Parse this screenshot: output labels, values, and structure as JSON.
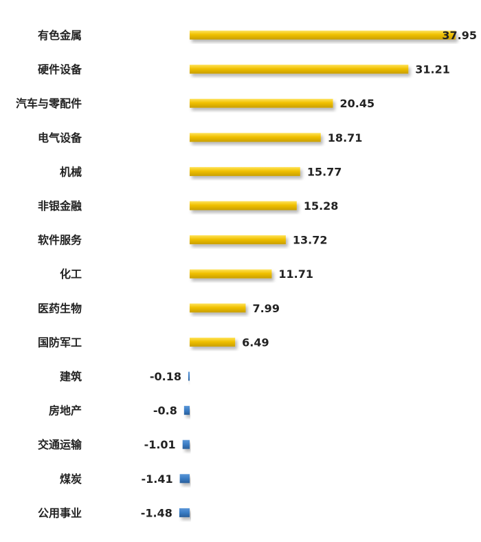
{
  "chart_data": {
    "type": "bar",
    "orientation": "horizontal",
    "categories": [
      "有色金属",
      "硬件设备",
      "汽车与零配件",
      "电气设备",
      "机械",
      "非银金融",
      "软件服务",
      "化工",
      "医药生物",
      "国防军工",
      "建筑",
      "房地产",
      "交通运输",
      "煤炭",
      "公用事业"
    ],
    "values": [
      37.95,
      31.21,
      20.45,
      18.71,
      15.77,
      15.28,
      13.72,
      11.71,
      7.99,
      6.49,
      -0.18,
      -0.8,
      -1.01,
      -1.41,
      -1.48
    ],
    "data_labels": [
      "37.95",
      "31.21",
      "20.45",
      "18.71",
      "15.77",
      "15.28",
      "13.72",
      "11.71",
      "7.99",
      "6.49",
      "-0.18",
      "-0.8",
      "-1.01",
      "-1.41",
      "-1.48"
    ],
    "title": "",
    "xlabel": "",
    "ylabel": "",
    "legend": "none",
    "grid": false,
    "colors": {
      "positive": "#f0c000",
      "positive_dark": "#c99f00",
      "negative": "#3a7cc4",
      "negative_dark": "#2a5f9a"
    }
  }
}
